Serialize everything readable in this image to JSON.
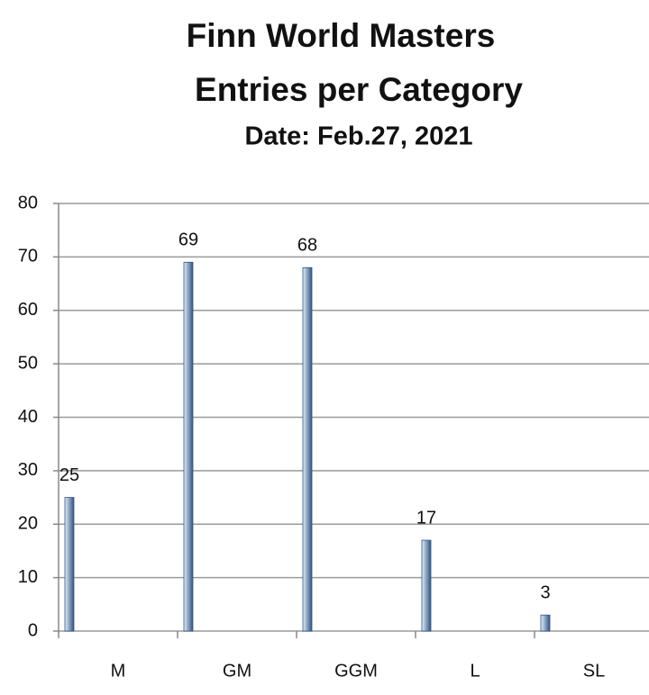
{
  "chart_data": {
    "type": "bar",
    "title": [
      "Finn World Masters",
      "Entries per Category"
    ],
    "subtitle": "Date: Feb.27, 2021",
    "categories": [
      "M",
      "GM",
      "GGM",
      "L",
      "SL"
    ],
    "values": [
      25,
      69,
      68,
      17,
      3
    ],
    "color": "#2f5585",
    "ylim": [
      0,
      80
    ],
    "yticks": [
      0,
      10,
      20,
      30,
      40,
      50,
      60,
      70,
      80
    ],
    "grid": true
  }
}
